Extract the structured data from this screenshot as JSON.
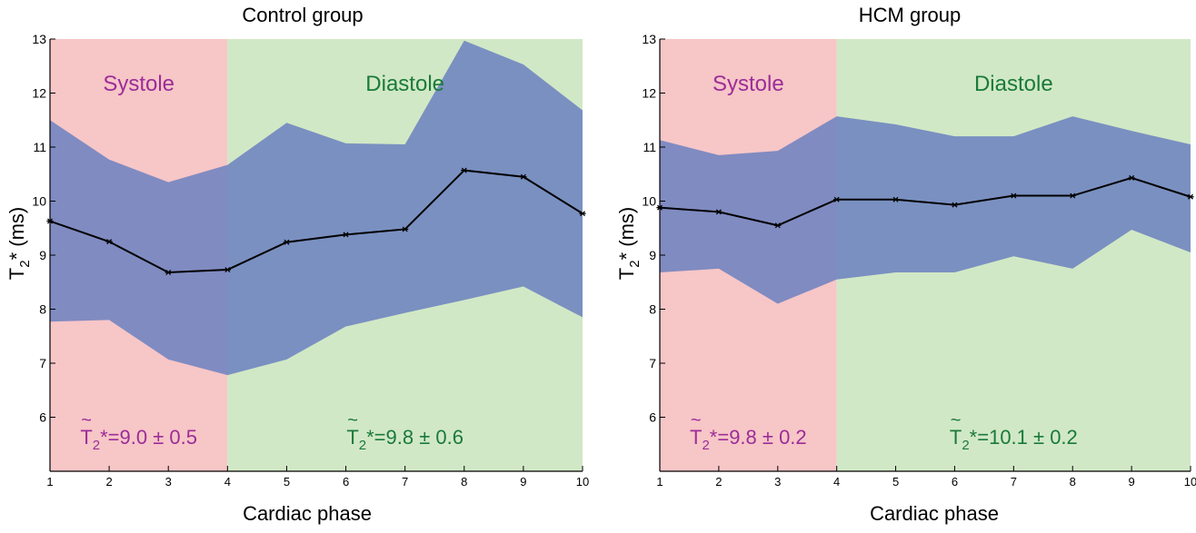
{
  "chart_data": [
    {
      "type": "area",
      "title": "Control group",
      "xlabel": "Cardiac phase",
      "ylabel": "T",
      "ylabel_sub": "2",
      "ylabel_rest": "* (ms)",
      "xlim": [
        1,
        10
      ],
      "ylim": [
        5,
        13
      ],
      "xticks": [
        1,
        2,
        3,
        4,
        5,
        6,
        7,
        8,
        9,
        10
      ],
      "yticks": [
        6,
        7,
        8,
        9,
        10,
        11,
        12,
        13
      ],
      "regions": [
        {
          "label": "Systole",
          "x_range": [
            1,
            4
          ],
          "color": "#f7c6c7",
          "text_color": "#9b2d98"
        },
        {
          "label": "Diastole",
          "x_range": [
            4,
            10
          ],
          "color": "#d1e8c6",
          "text_color": "#1a7a3a"
        }
      ],
      "x": [
        1,
        2,
        3,
        4,
        5,
        6,
        7,
        8,
        9,
        10
      ],
      "series": [
        {
          "name": "",
          "values": [
            9.63,
            9.25,
            8.68,
            8.73,
            9.24,
            9.38,
            9.48,
            10.57,
            10.45,
            9.77
          ]
        },
        {
          "name": "",
          "values": [
            11.5,
            10.77,
            10.35,
            10.67,
            11.45,
            11.07,
            11.05,
            12.97,
            12.53,
            11.68
          ]
        },
        {
          "name": "",
          "values": [
            7.77,
            7.8,
            7.07,
            6.78,
            7.07,
            7.68,
            7.93,
            8.17,
            8.42,
            7.85
          ]
        }
      ],
      "annotations": [
        {
          "region": 0,
          "symbol": "T",
          "sub": "2",
          "rest": "*=9.0 ± 0.5"
        },
        {
          "region": 1,
          "symbol": "T",
          "sub": "2",
          "rest": "*=9.8 ± 0.6"
        }
      ],
      "band_color": "#6b80bf",
      "line_color": "#000000",
      "grid": false
    },
    {
      "type": "area",
      "title": "HCM group",
      "xlabel": "Cardiac phase",
      "ylabel": "T",
      "ylabel_sub": "2",
      "ylabel_rest": "* (ms)",
      "xlim": [
        1,
        10
      ],
      "ylim": [
        5,
        13
      ],
      "xticks": [
        1,
        2,
        3,
        4,
        5,
        6,
        7,
        8,
        9,
        10
      ],
      "yticks": [
        6,
        7,
        8,
        9,
        10,
        11,
        12,
        13
      ],
      "regions": [
        {
          "label": "Systole",
          "x_range": [
            1,
            4
          ],
          "color": "#f7c6c7",
          "text_color": "#9b2d98"
        },
        {
          "label": "Diastole",
          "x_range": [
            4,
            10
          ],
          "color": "#d1e8c6",
          "text_color": "#1a7a3a"
        }
      ],
      "x": [
        1,
        2,
        3,
        4,
        5,
        6,
        7,
        8,
        9,
        10
      ],
      "series": [
        {
          "name": "",
          "values": [
            9.88,
            9.8,
            9.55,
            10.03,
            10.03,
            9.93,
            10.1,
            10.1,
            10.43,
            10.08
          ]
        },
        {
          "name": "",
          "values": [
            11.13,
            10.85,
            10.93,
            11.57,
            11.42,
            11.2,
            11.2,
            11.57,
            11.3,
            11.05
          ]
        },
        {
          "name": "",
          "values": [
            8.68,
            8.75,
            8.1,
            8.55,
            8.68,
            8.68,
            8.98,
            8.75,
            9.47,
            9.05
          ]
        }
      ],
      "annotations": [
        {
          "region": 0,
          "symbol": "T",
          "sub": "2",
          "rest": "*=9.8 ± 0.2"
        },
        {
          "region": 1,
          "symbol": "T",
          "sub": "2",
          "rest": "*=10.1 ± 0.2"
        }
      ],
      "band_color": "#6b80bf",
      "line_color": "#000000",
      "grid": false
    }
  ]
}
